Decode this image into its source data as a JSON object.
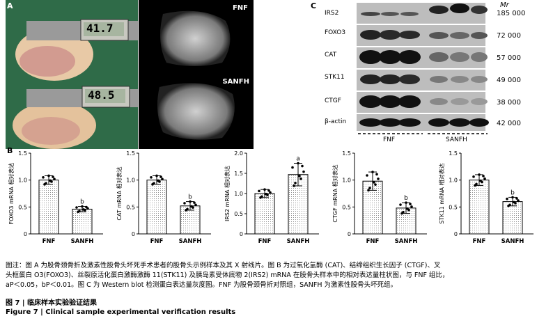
{
  "panel_labels": {
    "a": "A",
    "b": "B",
    "c": "C"
  },
  "panel_a": {
    "caliper_readings": [
      "41.7",
      "48.5"
    ],
    "xray_labels": [
      "FNF",
      "SANFH"
    ]
  },
  "panel_c": {
    "mw_header": "Mr",
    "rows": [
      {
        "name": "IRS2",
        "mw": "185 000"
      },
      {
        "name": "FOXO3",
        "mw": "72 000"
      },
      {
        "name": "CAT",
        "mw": "57 000"
      },
      {
        "name": "STK11",
        "mw": "49 000"
      },
      {
        "name": "CTGF",
        "mw": "38 000"
      },
      {
        "name": "β-actin",
        "mw": "42 000"
      }
    ],
    "groups": [
      "FNF",
      "SANFH"
    ]
  },
  "chart_data": [
    {
      "type": "bar",
      "ylabel": "FOXO3 mRNA 相对表达",
      "categories": [
        "FNF",
        "SANFH"
      ],
      "values": [
        1.0,
        0.46
      ],
      "errors": [
        0.08,
        0.05
      ],
      "sig": [
        "",
        "b"
      ],
      "ylim": [
        0,
        1.5
      ],
      "yticks": [
        "0",
        "0.5",
        "1.0",
        "1.5"
      ]
    },
    {
      "type": "bar",
      "ylabel": "CAT mRNA 相对表达",
      "categories": [
        "FNF",
        "SANFH"
      ],
      "values": [
        1.0,
        0.52
      ],
      "errors": [
        0.08,
        0.08
      ],
      "sig": [
        "",
        "b"
      ],
      "ylim": [
        0,
        1.5
      ],
      "yticks": [
        "0",
        "0.5",
        "1.0",
        "1.5"
      ]
    },
    {
      "type": "bar",
      "ylabel": "IRS2 mRNA 相对表达",
      "categories": [
        "FNF",
        "SANFH"
      ],
      "values": [
        1.0,
        1.47
      ],
      "errors": [
        0.1,
        0.28
      ],
      "sig": [
        "",
        "a"
      ],
      "ylim": [
        0,
        2.0
      ],
      "yticks": [
        "0",
        "0.5",
        "1.0",
        "1.5",
        "2.0"
      ]
    },
    {
      "type": "bar",
      "ylabel": "CTGF mRNA 相对表达",
      "categories": [
        "FNF",
        "SANFH"
      ],
      "values": [
        0.98,
        0.48
      ],
      "errors": [
        0.17,
        0.1
      ],
      "sig": [
        "",
        "b"
      ],
      "ylim": [
        0,
        1.5
      ],
      "yticks": [
        "0",
        "0.5",
        "1.0",
        "1.5"
      ]
    },
    {
      "type": "bar",
      "ylabel": "STK11 mRNA 相对表达",
      "categories": [
        "FNF",
        "SANFH"
      ],
      "values": [
        1.0,
        0.6
      ],
      "errors": [
        0.1,
        0.08
      ],
      "sig": [
        "",
        "b"
      ],
      "ylim": [
        0,
        1.5
      ],
      "yticks": [
        "0",
        "0.5",
        "1.0",
        "1.5"
      ]
    }
  ],
  "caption": {
    "line1": "图注：图 A 为股骨颈骨折及激素性股骨头坏死手术患者的股骨头示例样本及其 X 射线片。图 B 为过氧化氢酶 (CAT)、结缔组织生长因子 (CTGF)、叉",
    "line2": "头框蛋白 O3(FOXO3)、丝裂原活化蛋白激酶激酶 11(STK11) 及胰岛素受体底物 2(IRS2) mRNA 在股骨头样本中的相对表达量柱状图，与 FNF 组比，",
    "line3": "aP＜0.05，bP＜0.01。图 C 为 Western blot 检测蛋白表达量灰度图。FNF 为股骨颈骨折对照组，SANFH 为激素性股骨头坏死组。"
  },
  "fig_title_cn": "图 7  |  临床样本实验验证结果",
  "fig_title_en": "Figure 7  |  Clinical sample experimental verification results"
}
